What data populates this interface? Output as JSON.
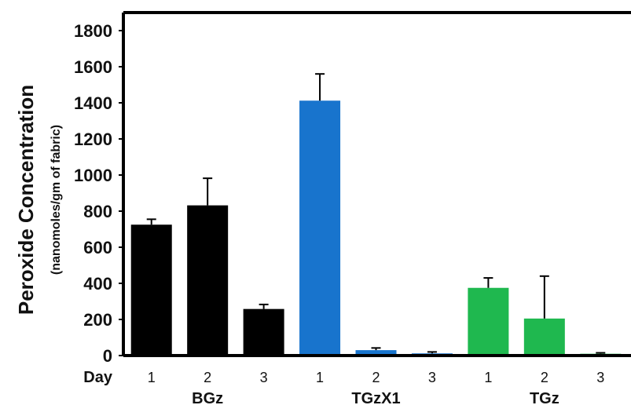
{
  "chart_data": {
    "type": "bar",
    "title": "",
    "ylabel": "Peroxide Concentration",
    "ylabel_sub": "(nanomoles/gm of fabric)",
    "xlabel": "Day",
    "ylim": [
      0,
      1900
    ],
    "yticks": [
      0,
      200,
      400,
      600,
      800,
      1000,
      1200,
      1400,
      1600,
      1800
    ],
    "grid": false,
    "legend": "none",
    "groups": [
      {
        "name": "BGz",
        "color": "#000000",
        "categories": [
          "1",
          "2",
          "3"
        ],
        "values": [
          725,
          832,
          258
        ],
        "errors": [
          30,
          150,
          25
        ]
      },
      {
        "name": "TGzX1",
        "color": "#1874cd",
        "categories": [
          "1",
          "2",
          "3"
        ],
        "values": [
          1412,
          30,
          12
        ],
        "errors": [
          148,
          12,
          8
        ]
      },
      {
        "name": "TGz",
        "color": "#1fb84f",
        "categories": [
          "1",
          "2",
          "3"
        ],
        "values": [
          375,
          205,
          10
        ],
        "errors": [
          55,
          235,
          5
        ]
      }
    ]
  }
}
